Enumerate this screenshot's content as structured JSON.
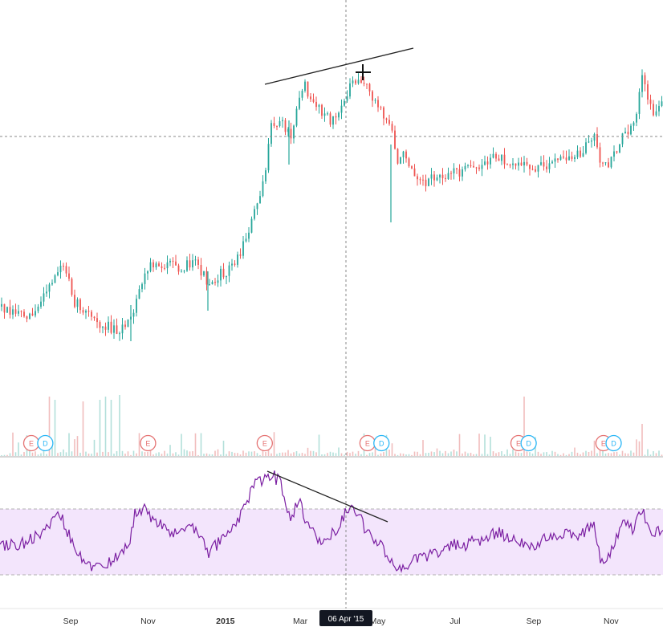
{
  "chart_data": [
    {
      "type": "candlestick",
      "panel": "price",
      "colors": {
        "up": "#26a69a",
        "down": "#ef5350"
      }
    },
    {
      "type": "bar",
      "panel": "volume",
      "events": [
        {
          "letter": "E",
          "label": "E",
          "date": "2014-08-01",
          "color": "#e57373"
        },
        {
          "letter": "D",
          "label": "D",
          "date": "2014-08-12",
          "color": "#29b6f6"
        },
        {
          "letter": "E",
          "label": "E",
          "date": "2014-11-01",
          "color": "#e57373"
        },
        {
          "letter": "E",
          "label": "E",
          "date": "2015-02-01",
          "color": "#e57373"
        },
        {
          "letter": "E",
          "label": "E",
          "date": "2015-04-23",
          "color": "#e57373"
        },
        {
          "letter": "D",
          "label": "D",
          "date": "2015-05-04",
          "color": "#29b6f6"
        },
        {
          "letter": "E",
          "label": "E",
          "date": "2015-08-20",
          "color": "#e57373"
        },
        {
          "letter": "D",
          "label": "D",
          "date": "2015-08-28",
          "color": "#29b6f6"
        },
        {
          "letter": "E",
          "label": "E",
          "date": "2015-10-26",
          "color": "#e57373"
        },
        {
          "letter": "D",
          "label": "D",
          "date": "2015-11-03",
          "color": "#29b6f6"
        }
      ]
    },
    {
      "type": "line",
      "panel": "oscillator",
      "band_color": "#f3e5fc",
      "line_color": "#7b1fa2"
    }
  ],
  "x_axis": {
    "ticks": [
      {
        "label": "Sep",
        "date": "2014-09-01",
        "bold": false
      },
      {
        "label": "Nov",
        "date": "2014-11-01",
        "bold": false
      },
      {
        "label": "2015",
        "date": "2015-01-01",
        "bold": true
      },
      {
        "label": "Mar",
        "date": "2015-03-01",
        "bold": false
      },
      {
        "label": "May",
        "date": "2015-05-01",
        "bold": false
      },
      {
        "label": "Jul",
        "date": "2015-07-01",
        "bold": false
      },
      {
        "label": "Sep",
        "date": "2015-09-01",
        "bold": false
      },
      {
        "label": "Nov",
        "date": "2015-11-01",
        "bold": false
      }
    ]
  },
  "crosshair": {
    "label": "06 Apr '15",
    "date": "2015-04-06"
  }
}
